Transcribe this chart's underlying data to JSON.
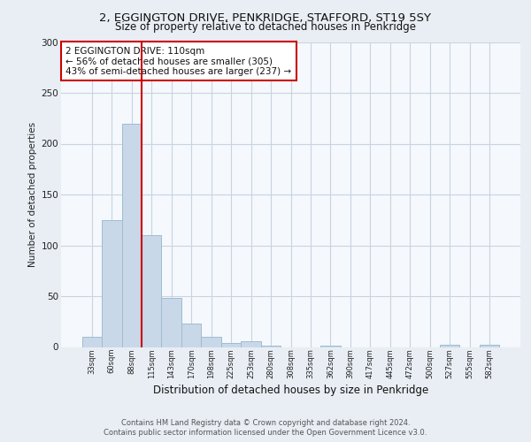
{
  "title": "2, EGGINGTON DRIVE, PENKRIDGE, STAFFORD, ST19 5SY",
  "subtitle": "Size of property relative to detached houses in Penkridge",
  "xlabel": "Distribution of detached houses by size in Penkridge",
  "ylabel": "Number of detached properties",
  "categories": [
    "33sqm",
    "60sqm",
    "88sqm",
    "115sqm",
    "143sqm",
    "170sqm",
    "198sqm",
    "225sqm",
    "253sqm",
    "280sqm",
    "308sqm",
    "335sqm",
    "362sqm",
    "390sqm",
    "417sqm",
    "445sqm",
    "472sqm",
    "500sqm",
    "527sqm",
    "555sqm",
    "582sqm"
  ],
  "values": [
    10,
    125,
    220,
    110,
    48,
    23,
    10,
    4,
    6,
    1,
    0,
    0,
    1,
    0,
    0,
    0,
    0,
    0,
    2,
    0,
    2
  ],
  "bar_color": "#c8d8e8",
  "bar_edge_color": "#a0bcd0",
  "highlight_line_color": "#cc0000",
  "annotation_text": "2 EGGINGTON DRIVE: 110sqm\n← 56% of detached houses are smaller (305)\n43% of semi-detached houses are larger (237) →",
  "annotation_box_color": "#ffffff",
  "annotation_box_edge": "#cc0000",
  "ylim": [
    0,
    300
  ],
  "yticks": [
    0,
    50,
    100,
    150,
    200,
    250,
    300
  ],
  "footer": "Contains HM Land Registry data © Crown copyright and database right 2024.\nContains public sector information licensed under the Open Government Licence v3.0.",
  "bg_color": "#e8eef4",
  "plot_bg_color": "#f5f8fc",
  "grid_color": "#c8d4e0"
}
